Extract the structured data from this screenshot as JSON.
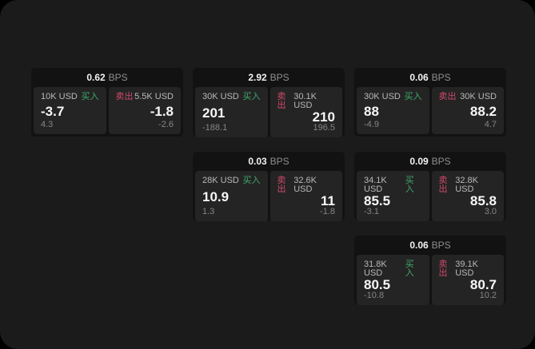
{
  "theme": {
    "page_bg": "#1b1b1b",
    "card_bg": "#121212",
    "panel_bg": "#242424",
    "accent_green": "#3fa96c",
    "accent_red": "#cf4a6b",
    "value_color": "#f7f7f7",
    "muted_color": "#858585"
  },
  "cards": [
    {
      "bps": "0.62",
      "unit": "BPS",
      "grid": {
        "row": 1,
        "col": 1
      },
      "buy": {
        "amount": "10K USD",
        "label": "买入",
        "value": "-3.7",
        "sub": "4.3"
      },
      "sell": {
        "label": "卖出",
        "amount": "5.5K USD",
        "value": "-1.8",
        "sub": "-2.6"
      }
    },
    {
      "bps": "2.92",
      "unit": "BPS",
      "grid": {
        "row": 1,
        "col": 2
      },
      "buy": {
        "amount": "30K USD",
        "label": "买入",
        "value": "201",
        "sub": "-188.1"
      },
      "sell": {
        "label": "卖出",
        "amount": "30.1K USD",
        "value": "210",
        "sub": "196.5"
      }
    },
    {
      "bps": "0.06",
      "unit": "BPS",
      "grid": {
        "row": 1,
        "col": 3
      },
      "buy": {
        "amount": "30K USD",
        "label": "买入",
        "value": "88",
        "sub": "-4.9"
      },
      "sell": {
        "label": "卖出",
        "amount": "30K USD",
        "value": "88.2",
        "sub": "4.7"
      }
    },
    {
      "bps": "0.03",
      "unit": "BPS",
      "grid": {
        "row": 2,
        "col": 2
      },
      "buy": {
        "amount": "28K USD",
        "label": "买入",
        "value": "10.9",
        "sub": "1.3"
      },
      "sell": {
        "label": "卖出",
        "amount": "32.6K USD",
        "value": "11",
        "sub": "-1.8"
      }
    },
    {
      "bps": "0.09",
      "unit": "BPS",
      "grid": {
        "row": 2,
        "col": 3
      },
      "buy": {
        "amount": "34.1K USD",
        "label": "买入",
        "value": "85.5",
        "sub": "-3.1"
      },
      "sell": {
        "label": "卖出",
        "amount": "32.8K USD",
        "value": "85.8",
        "sub": "3.0"
      }
    },
    {
      "bps": "0.06",
      "unit": "BPS",
      "grid": {
        "row": 3,
        "col": 3
      },
      "buy": {
        "amount": "31.8K USD",
        "label": "买入",
        "value": "80.5",
        "sub": "-10.8"
      },
      "sell": {
        "label": "卖出",
        "amount": "39.1K USD",
        "value": "80.7",
        "sub": "10.2"
      }
    }
  ]
}
